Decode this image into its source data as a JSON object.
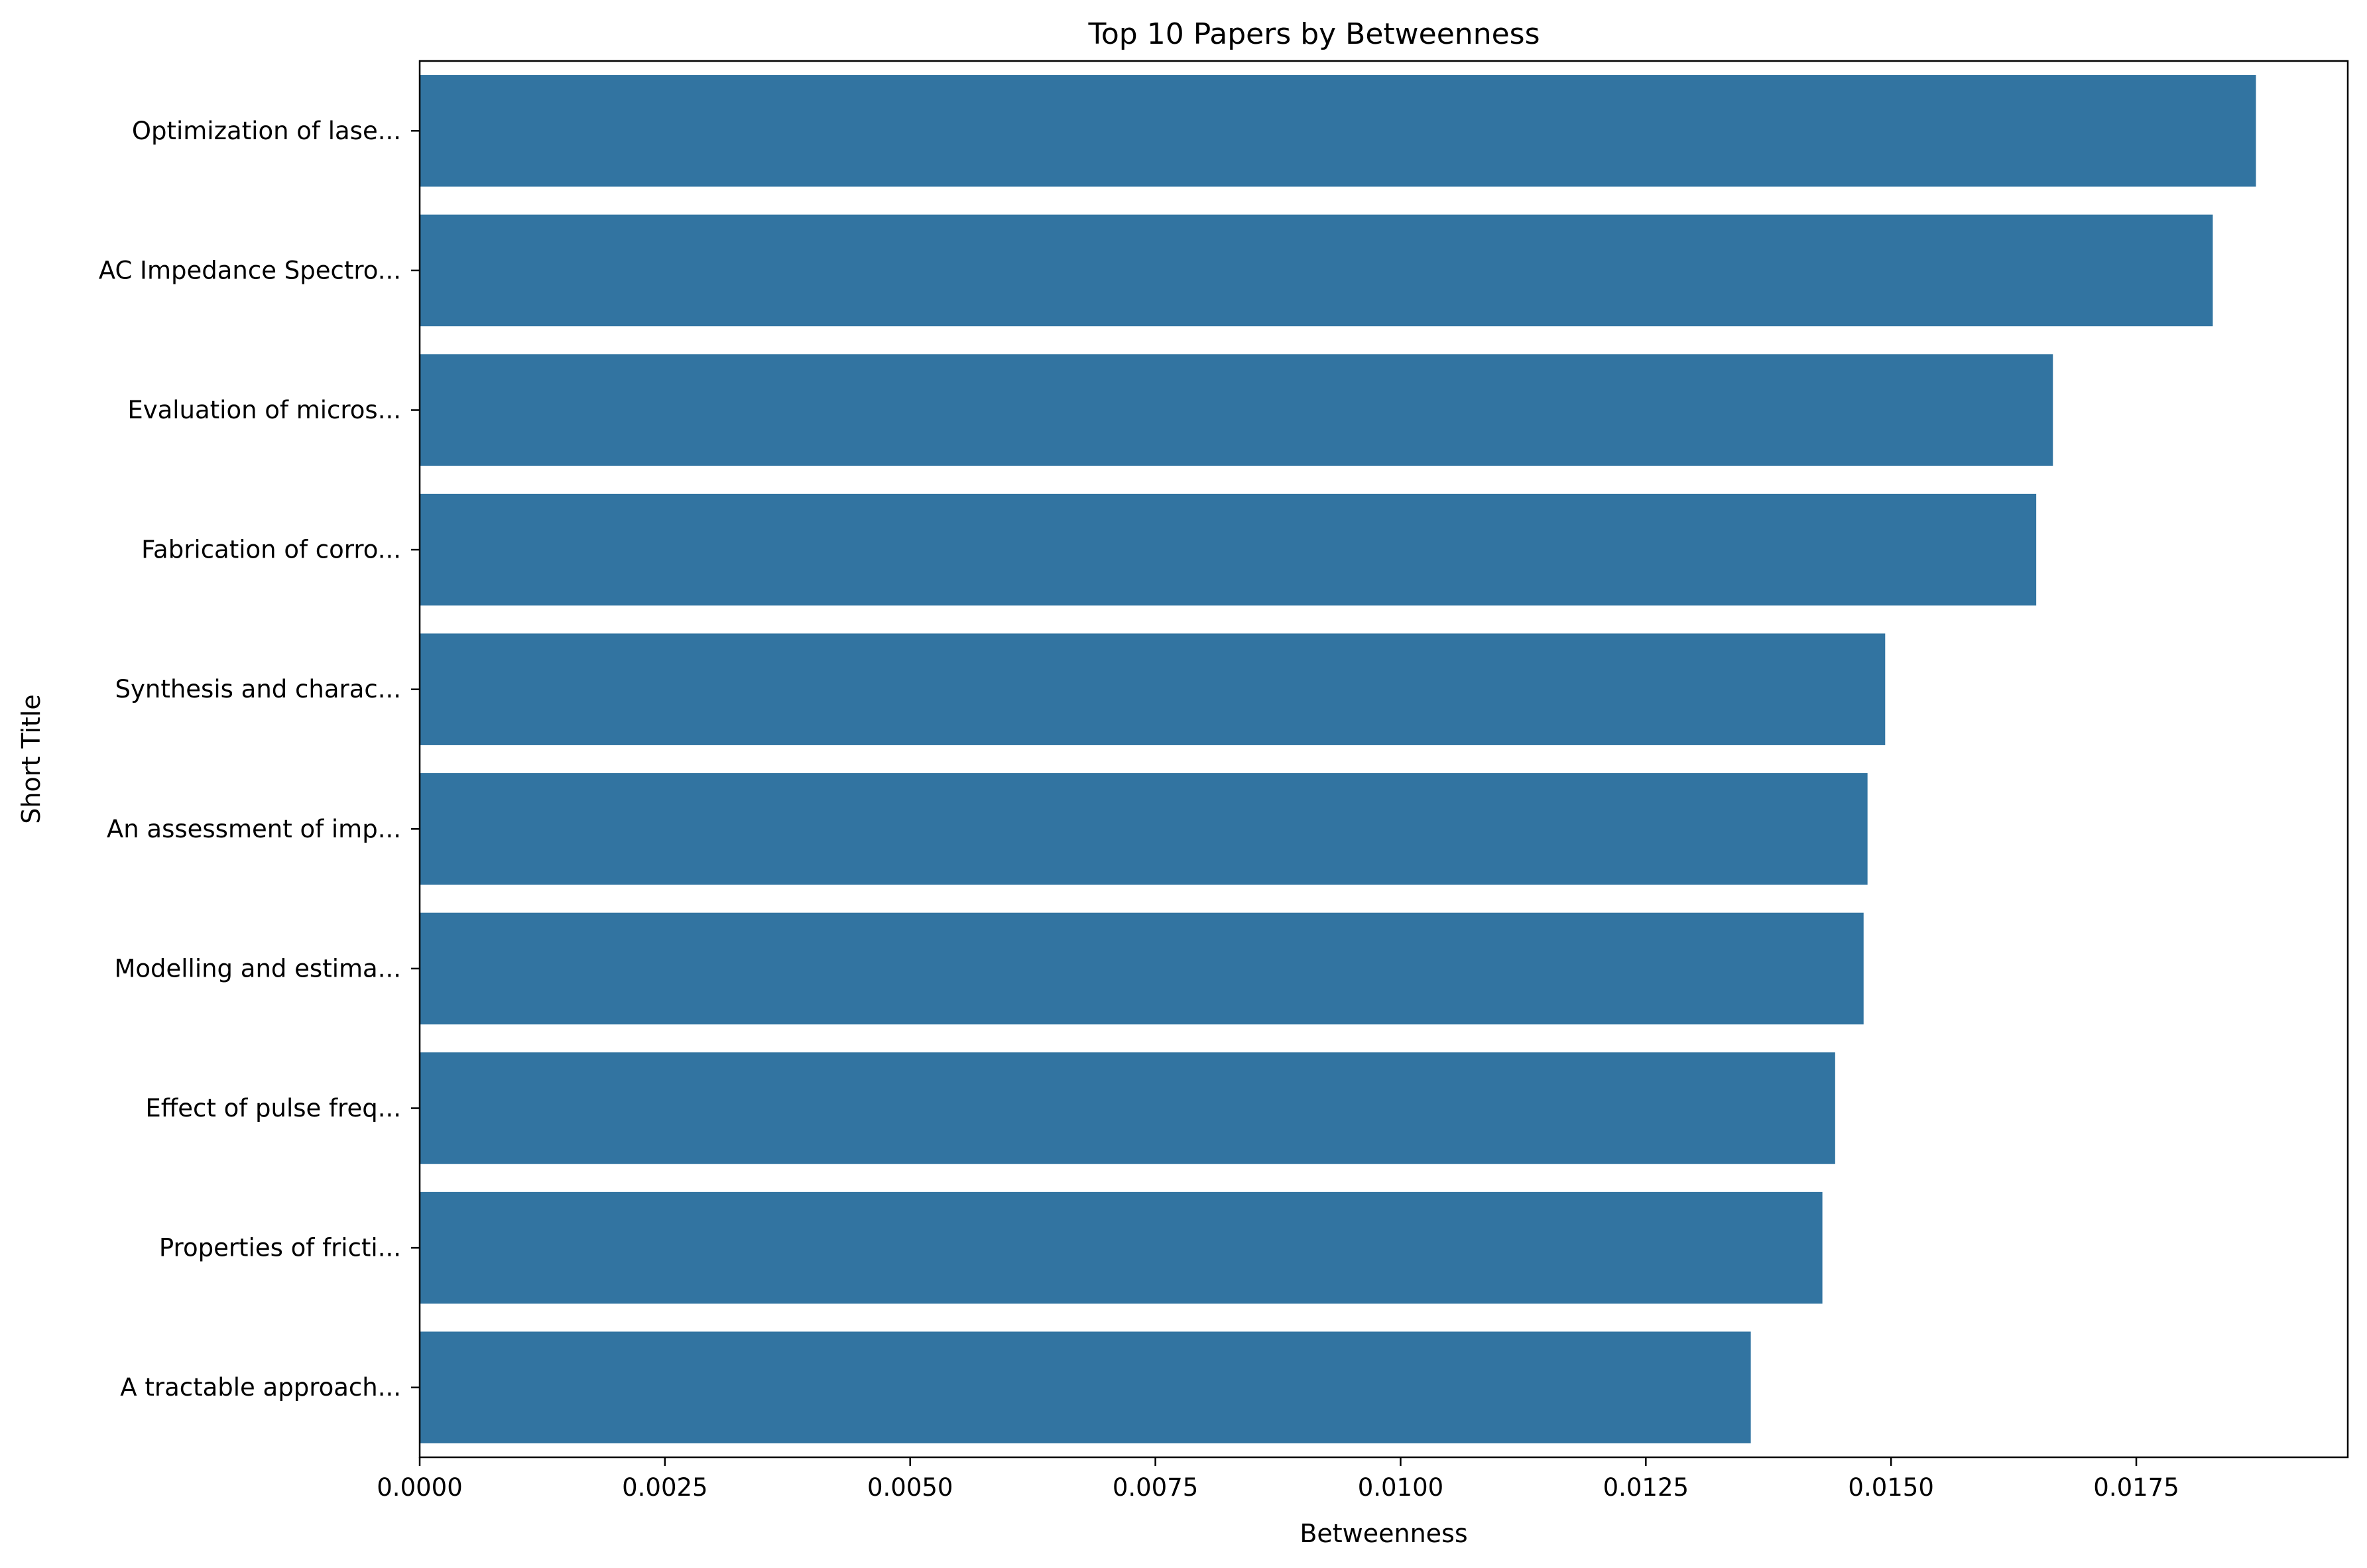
{
  "chart_data": {
    "type": "bar",
    "orientation": "horizontal",
    "title": "Top 10 Papers by Betweenness",
    "xlabel": "Betweenness",
    "ylabel": "Short Title",
    "bar_color": "#3274a1",
    "categories": [
      "Optimization of lase...",
      "AC Impedance Spectro...",
      "Evaluation of micros...",
      "Fabrication of corro...",
      "Synthesis and charac...",
      "An assessment of imp...",
      "Modelling and estima...",
      "Effect of pulse freq...",
      "Properties of fricti...",
      "A tractable approach..."
    ],
    "values": [
      0.01872,
      0.01828,
      0.01665,
      0.01648,
      0.01494,
      0.01476,
      0.01472,
      0.01443,
      0.0143,
      0.01357
    ],
    "xlim": [
      0,
      0.019656
    ],
    "xticks": [
      "0.0000",
      "0.0025",
      "0.0050",
      "0.0075",
      "0.0100",
      "0.0125",
      "0.0150",
      "0.0175"
    ],
    "grid": false,
    "legend": "none"
  }
}
